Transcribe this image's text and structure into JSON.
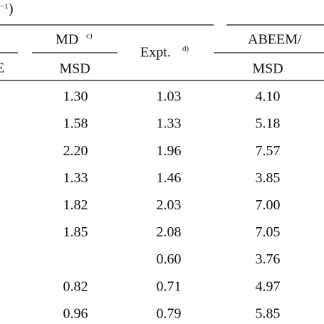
{
  "header": {
    "unit_fragment": "−1",
    "unit_close": ")",
    "left_fragment": "E",
    "columns": [
      {
        "label": "MD",
        "note": "c)",
        "sub": "MSD"
      },
      {
        "label": "Expt.",
        "note": "d)"
      },
      {
        "label": "ABEEM/",
        "sub": "MSD"
      }
    ]
  },
  "table": {
    "rows": [
      [
        "1.30",
        "1.03",
        "4.10"
      ],
      [
        "1.58",
        "1.33",
        "5.18"
      ],
      [
        "2.20",
        "1.96",
        "7.57"
      ],
      [
        "1.33",
        "1.46",
        "3.85"
      ],
      [
        "1.82",
        "2.03",
        "7.00"
      ],
      [
        "1.85",
        "2.08",
        "7.05"
      ],
      [
        null,
        "0.60",
        "3.76"
      ],
      [
        "0.82",
        "0.71",
        "4.97"
      ],
      [
        "0.96",
        "0.79",
        "5.85"
      ]
    ]
  }
}
